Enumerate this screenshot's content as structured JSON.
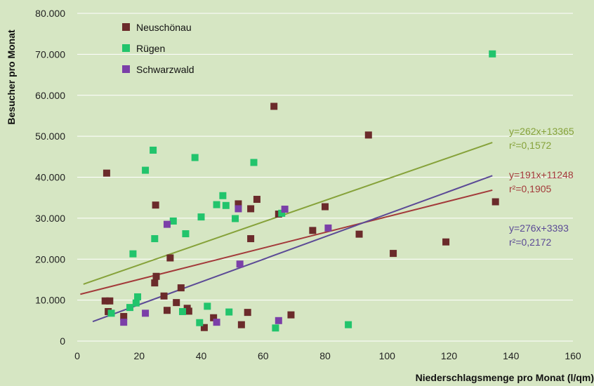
{
  "chart_data": {
    "type": "scatter",
    "xlabel": "Niederschlagsmenge pro Monat (l/qm)",
    "ylabel": "Besucher pro Monat",
    "xlim": [
      0,
      160
    ],
    "ylim": [
      0,
      80000
    ],
    "x_ticks": [
      "0",
      "20",
      "40",
      "60",
      "80",
      "100",
      "120",
      "140",
      "160"
    ],
    "y_ticks": [
      "0",
      "10.000",
      "20.000",
      "30.000",
      "40.000",
      "50.000",
      "60.000",
      "70.000",
      "80.000"
    ],
    "grid": "horizontal",
    "legend_position": "top-left",
    "series": [
      {
        "name": "Neuschönau",
        "color": "#6b2b2b",
        "points": [
          [
            9,
            9800
          ],
          [
            9.5,
            41000
          ],
          [
            10,
            7200
          ],
          [
            10.5,
            9800
          ],
          [
            15,
            6000
          ],
          [
            25,
            14200
          ],
          [
            25.3,
            33200
          ],
          [
            25.5,
            15800
          ],
          [
            28,
            11000
          ],
          [
            29,
            7500
          ],
          [
            30,
            20300
          ],
          [
            32,
            9400
          ],
          [
            33.5,
            13000
          ],
          [
            35.5,
            8000
          ],
          [
            36,
            7300
          ],
          [
            41,
            3300
          ],
          [
            44,
            5700
          ],
          [
            52,
            33500
          ],
          [
            53,
            4000
          ],
          [
            55,
            7000
          ],
          [
            56,
            25000
          ],
          [
            56,
            32300
          ],
          [
            58,
            34600
          ],
          [
            63.5,
            57300
          ],
          [
            65,
            31000
          ],
          [
            69,
            6400
          ],
          [
            76,
            27000
          ],
          [
            80,
            32800
          ],
          [
            91,
            26100
          ],
          [
            94,
            50300
          ],
          [
            102,
            21400
          ],
          [
            119,
            24200
          ],
          [
            135,
            34000
          ]
        ]
      },
      {
        "name": "Rügen",
        "color": "#22c46c",
        "points": [
          [
            11,
            6800
          ],
          [
            17,
            8200
          ],
          [
            18,
            21300
          ],
          [
            19,
            9300
          ],
          [
            19.5,
            10800
          ],
          [
            22,
            41700
          ],
          [
            24.5,
            46600
          ],
          [
            25,
            25000
          ],
          [
            31,
            29300
          ],
          [
            34,
            7200
          ],
          [
            35,
            26200
          ],
          [
            38,
            44800
          ],
          [
            39.5,
            4500
          ],
          [
            40,
            30300
          ],
          [
            42,
            8500
          ],
          [
            45,
            33300
          ],
          [
            47,
            35500
          ],
          [
            48,
            33100
          ],
          [
            49,
            7100
          ],
          [
            51,
            29900
          ],
          [
            57,
            43600
          ],
          [
            64,
            3200
          ],
          [
            66,
            31200
          ],
          [
            87.5,
            4000
          ],
          [
            134,
            70100
          ]
        ]
      },
      {
        "name": "Schwarzwald",
        "color": "#7b3fa8",
        "points": [
          [
            15,
            4600
          ],
          [
            22,
            6800
          ],
          [
            29,
            28500
          ],
          [
            45,
            4600
          ],
          [
            52,
            32300
          ],
          [
            52.5,
            18800
          ],
          [
            65,
            5000
          ],
          [
            67,
            32200
          ],
          [
            81,
            27600
          ]
        ]
      }
    ],
    "trendlines": [
      {
        "series": "Rügen",
        "equation": "y=262x+13365",
        "r2": "r²=0,1572",
        "slope": 262,
        "intercept": 13365,
        "x_range": [
          2,
          134
        ],
        "color": "#86a23a"
      },
      {
        "series": "Neuschönau",
        "equation": "y=191x+11248",
        "r2": "r²=0,1905",
        "slope": 191,
        "intercept": 11248,
        "x_range": [
          1,
          134
        ],
        "color": "#a33a3a"
      },
      {
        "series": "Schwarzwald",
        "equation": "y=276x+3393",
        "r2": "r²=0,2172",
        "slope": 276,
        "intercept": 3393,
        "x_range": [
          5,
          134
        ],
        "color": "#5b4a96"
      }
    ]
  }
}
